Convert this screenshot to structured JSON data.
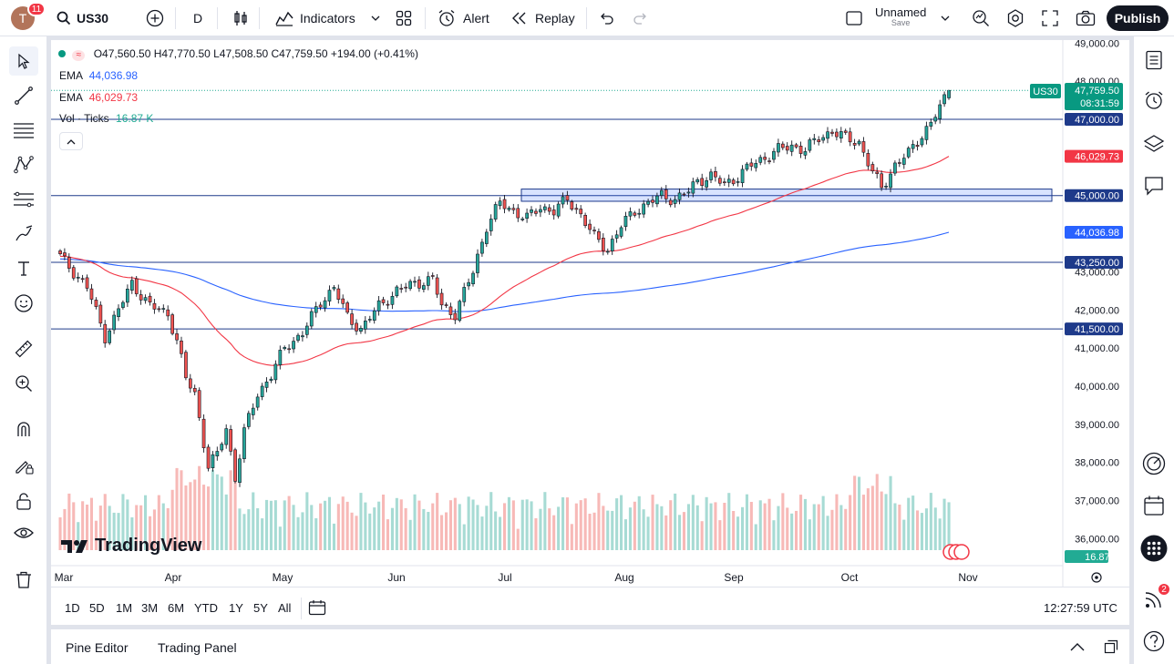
{
  "topbar": {
    "avatar_letter": "T",
    "notif_count": "11",
    "symbol": "US30",
    "interval": "D",
    "indicators_label": "Indicators",
    "alert_label": "Alert",
    "replay_label": "Replay",
    "layout_name": "Unnamed",
    "save_label": "Save",
    "publish_label": "Publish"
  },
  "legend": {
    "ohlc": "O47,560.50 H47,770.50 L47,508.50 C47,759.50 +194.00 (+0.41%)",
    "ema1_label": "EMA",
    "ema1_value": "44,036.98",
    "ema2_label": "EMA",
    "ema2_value": "46,029.73",
    "vol_label": "Vol · Ticks",
    "vol_value": "16.87 K"
  },
  "price_axis": {
    "ticks": [
      "49,000.00",
      "48,000.00",
      "47,000.00",
      "46,000.00",
      "45,000.00",
      "44,000.00",
      "43,000.00",
      "42,000.00",
      "41,000.00",
      "40,000.00",
      "39,000.00",
      "38,000.00",
      "37,000.00",
      "36,000.00"
    ],
    "symbol_tag": "US30",
    "last_price": "47,759.50",
    "countdown": "08:31:59",
    "ema2_tag": "46,029.73",
    "ema1_tag": "44,036.98",
    "vol_tag": "16.87 K",
    "hlines": [
      "47,000.00",
      "45,000.00",
      "43,250.00",
      "41,500.00"
    ]
  },
  "time_axis": {
    "labels": [
      "Mar",
      "Apr",
      "May",
      "Jun",
      "Jul",
      "Aug",
      "Sep",
      "Oct",
      "Nov"
    ]
  },
  "watermark": "TradingView",
  "bottom": {
    "ranges": [
      "1D",
      "5D",
      "1M",
      "3M",
      "6M",
      "YTD",
      "1Y",
      "5Y",
      "All"
    ],
    "clock": "12:27:59 UTC",
    "pine_editor": "Pine Editor",
    "trading_panel": "Trading Panel"
  },
  "rightbar": {
    "badge": "2"
  },
  "colors": {
    "up": "#26a69a",
    "down": "#ef5350",
    "ema1": "#2962ff",
    "ema2": "#f23645",
    "hline": "#1e3a8a",
    "zone": "#2962ff",
    "vol_up": "#a7dbd4",
    "vol_down": "#f7b9b7"
  },
  "chart_data": {
    "type": "candlestick",
    "symbol": "US30",
    "interval": "D",
    "price_range": [
      35600,
      49200
    ],
    "horizontal_levels": [
      47000,
      45000,
      43250,
      41500
    ],
    "zone": {
      "from": 44850,
      "to": 45170,
      "start_month": "Jul"
    },
    "ema_fast_last": 46029.73,
    "ema_slow_last": 44036.98,
    "last": {
      "open": 47560.5,
      "high": 47770.5,
      "low": 47508.5,
      "close": 47759.5,
      "change": 194.0,
      "change_pct": 0.41
    }
  }
}
